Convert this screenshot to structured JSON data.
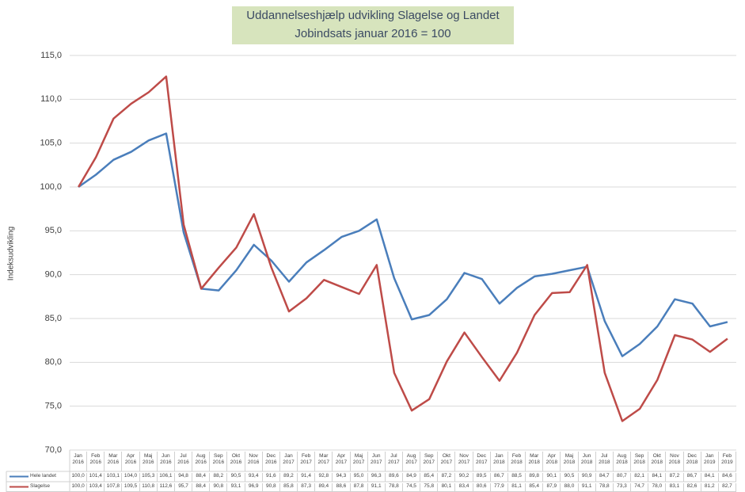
{
  "chart_data": {
    "type": "line",
    "title": "Uddannelseshjælp udvikling Slagelse og Landet",
    "subtitle": "Jobindsats januar 2016 = 100",
    "y_label": "Indeksudvikling",
    "categories": [
      "Jan 2016",
      "Feb 2016",
      "Mar 2016",
      "Apr 2016",
      "Maj 2016",
      "Jun 2016",
      "Jul 2016",
      "Aug 2016",
      "Sep 2016",
      "Okt 2016",
      "Nov 2016",
      "Dec 2016",
      "Jan 2017",
      "Feb 2017",
      "Mar 2017",
      "Apr 2017",
      "Maj 2017",
      "Jun 2017",
      "Jul 2017",
      "Aug 2017",
      "Sep 2017",
      "Okt 2017",
      "Nov 2017",
      "Dec 2017",
      "Jan 2018",
      "Feb 2018",
      "Mar 2018",
      "Apr 2018",
      "Maj 2018",
      "Jun 2018",
      "Jul 2018",
      "Aug 2018",
      "Sep 2018",
      "Okt 2018",
      "Nov 2018",
      "Dec 2018",
      "Jan 2019",
      "Feb 2019"
    ],
    "series": [
      {
        "name": "Hele landet",
        "color": "#4a7ebb",
        "values": [
          100.0,
          101.4,
          103.1,
          104.0,
          105.3,
          106.1,
          94.8,
          88.4,
          88.2,
          90.5,
          93.4,
          91.6,
          89.2,
          91.4,
          92.8,
          94.3,
          95.0,
          96.3,
          89.6,
          84.9,
          85.4,
          87.2,
          90.2,
          89.5,
          86.7,
          88.5,
          89.8,
          90.1,
          90.5,
          90.9,
          84.7,
          80.7,
          82.1,
          84.1,
          87.2,
          86.7,
          84.1,
          84.6
        ],
        "value_labels": [
          "100,0",
          "101,4",
          "103,1",
          "104,0",
          "105,3",
          "106,1",
          "94,8",
          "88,4",
          "88,2",
          "90,5",
          "93,4",
          "91,6",
          "89,2",
          "91,4",
          "92,8",
          "94,3",
          "95,0",
          "96,3",
          "89,6",
          "84,9",
          "85,4",
          "87,2",
          "90,2",
          "89,5",
          "86,7",
          "88,5",
          "89,8",
          "90,1",
          "90,5",
          "90,9",
          "84,7",
          "80,7",
          "82,1",
          "84,1",
          "87,2",
          "86,7",
          "84,1",
          "84,6"
        ]
      },
      {
        "name": "Slagelse",
        "color": "#be4b48",
        "values": [
          100.0,
          103.4,
          107.8,
          109.5,
          110.8,
          112.6,
          95.7,
          88.4,
          90.8,
          93.1,
          96.9,
          90.8,
          85.8,
          87.3,
          89.4,
          88.6,
          87.8,
          91.1,
          78.8,
          74.5,
          75.8,
          80.1,
          83.4,
          80.6,
          77.9,
          81.1,
          85.4,
          87.9,
          88.0,
          91.1,
          78.8,
          73.3,
          74.7,
          78.0,
          83.1,
          82.6,
          81.2,
          82.7
        ],
        "value_labels": [
          "100,0",
          "103,4",
          "107,8",
          "109,5",
          "110,8",
          "112,6",
          "95,7",
          "88,4",
          "90,8",
          "93,1",
          "96,9",
          "90,8",
          "85,8",
          "87,3",
          "89,4",
          "88,6",
          "87,8",
          "91,1",
          "78,8",
          "74,5",
          "75,8",
          "80,1",
          "83,4",
          "80,6",
          "77,9",
          "81,1",
          "85,4",
          "87,9",
          "88,0",
          "91,1",
          "78,8",
          "73,3",
          "74,7",
          "78,0",
          "83,1",
          "82,6",
          "81,2",
          "82,7"
        ]
      }
    ],
    "ylim": [
      70,
      115
    ],
    "yticks": [
      {
        "value": 70,
        "label": "70,0"
      },
      {
        "value": 75,
        "label": "75,0"
      },
      {
        "value": 80,
        "label": "80,0"
      },
      {
        "value": 85,
        "label": "85,0"
      },
      {
        "value": 90,
        "label": "90,0"
      },
      {
        "value": 95,
        "label": "95,0"
      },
      {
        "value": 100,
        "label": "100,0"
      },
      {
        "value": 105,
        "label": "105,0"
      },
      {
        "value": 110,
        "label": "110,0"
      },
      {
        "value": 115,
        "label": "115,0"
      }
    ],
    "grid": true
  }
}
